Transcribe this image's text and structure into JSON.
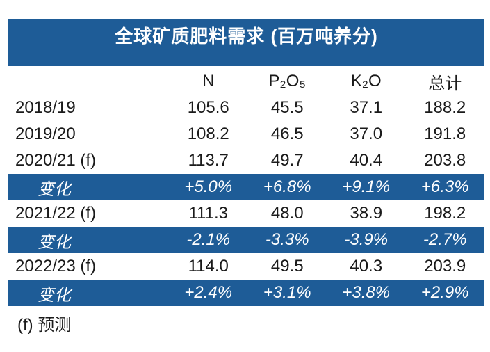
{
  "title": "全球矿质肥料需求 (百万吨养分)",
  "footnote": "(f) 预测",
  "colors": {
    "accent_blue": "#1e5c97",
    "text": "#1a1a1a",
    "change_row_text": "#ffffff"
  },
  "table": {
    "columns": [
      "",
      "N",
      "P₂O₅",
      "K₂O",
      "总计"
    ],
    "rows": [
      {
        "type": "data",
        "label": "2018/19",
        "values": [
          "105.6",
          "45.5",
          "37.1",
          "188.2"
        ]
      },
      {
        "type": "data",
        "label": "2019/20",
        "values": [
          "108.2",
          "46.5",
          "37.0",
          "191.8"
        ]
      },
      {
        "type": "data",
        "label": "2020/21 (f)",
        "values": [
          "113.7",
          "49.7",
          "40.4",
          "203.8"
        ]
      },
      {
        "type": "change",
        "label": "变化",
        "values": [
          "+5.0%",
          "+6.8%",
          "+9.1%",
          "+6.3%"
        ]
      },
      {
        "type": "data",
        "label": "2021/22 (f)",
        "values": [
          "111.3",
          "48.0",
          "38.9",
          "198.2"
        ]
      },
      {
        "type": "change",
        "label": "变化",
        "values": [
          "-2.1%",
          "-3.3%",
          "-3.9%",
          "-2.7%"
        ]
      },
      {
        "type": "data",
        "label": "2022/23 (f)",
        "values": [
          "114.0",
          "49.5",
          "40.3",
          "203.9"
        ]
      },
      {
        "type": "change",
        "label": "变化",
        "values": [
          "+2.4%",
          "+3.1%",
          "+3.8%",
          "+2.9%"
        ]
      }
    ]
  },
  "chart_data": {
    "type": "table",
    "title": "全球矿质肥料需求 (百万吨养分)",
    "unit": "百万吨养分",
    "columns": [
      "N",
      "P₂O₅",
      "K₂O",
      "总计"
    ],
    "rows": [
      {
        "label": "2018/19",
        "N": 105.6,
        "P2O5": 45.5,
        "K2O": 37.1,
        "total": 188.2
      },
      {
        "label": "2019/20",
        "N": 108.2,
        "P2O5": 46.5,
        "K2O": 37.0,
        "total": 191.8
      },
      {
        "label": "2020/21 (f)",
        "N": 113.7,
        "P2O5": 49.7,
        "K2O": 40.4,
        "total": 203.8
      },
      {
        "label": "变化",
        "N": "+5.0%",
        "P2O5": "+6.8%",
        "K2O": "+9.1%",
        "total": "+6.3%"
      },
      {
        "label": "2021/22 (f)",
        "N": 111.3,
        "P2O5": 48.0,
        "K2O": 38.9,
        "total": 198.2
      },
      {
        "label": "变化",
        "N": "-2.1%",
        "P2O5": "-3.3%",
        "K2O": "-3.9%",
        "total": "-2.7%"
      },
      {
        "label": "2022/23 (f)",
        "N": 114.0,
        "P2O5": 49.5,
        "K2O": 40.3,
        "total": 203.9
      },
      {
        "label": "变化",
        "N": "+2.4%",
        "P2O5": "+3.1%",
        "K2O": "+3.8%",
        "total": "+2.9%"
      }
    ],
    "footnote": "(f) 预测",
    "legend_position": "none",
    "grid": false
  }
}
